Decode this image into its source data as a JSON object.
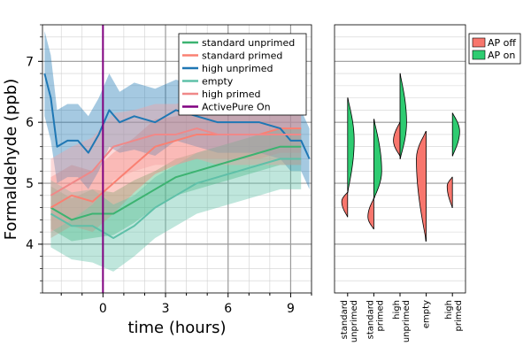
{
  "chart_data": [
    {
      "type": "line",
      "title": "",
      "xlabel": "time (hours)",
      "ylabel": "Formaldehyde (ppb)",
      "xlim": [
        -2.9,
        10.0
      ],
      "ylim": [
        3.2,
        7.6
      ],
      "xticks": [
        0,
        3,
        6,
        9
      ],
      "yticks": [
        4,
        5,
        6,
        7
      ],
      "grid": true,
      "legend_position": "top-right",
      "vline": {
        "x": 0,
        "label": "ActivePure On",
        "color": "#800080"
      },
      "series": [
        {
          "name": "standard unprimed",
          "color": "#3CB371",
          "band_color": "#3CB371",
          "x": [
            -2.5,
            -1.5,
            -0.5,
            0.5,
            1.5,
            2.5,
            3.5,
            4.5,
            5.5,
            6.5,
            7.5,
            8.5,
            9.5
          ],
          "y": [
            4.6,
            4.4,
            4.5,
            4.5,
            4.7,
            4.9,
            5.1,
            5.2,
            5.3,
            5.4,
            5.5,
            5.6,
            5.6
          ],
          "band": [
            0.35,
            0.35,
            0.4,
            0.35,
            0.35,
            0.3,
            0.3,
            0.3,
            0.3,
            0.3,
            0.3,
            0.3,
            0.3
          ]
        },
        {
          "name": "standard primed",
          "color": "#FA8072",
          "band_color": "#FA8072",
          "x": [
            -2.5,
            -1.5,
            -0.5,
            0.5,
            1.5,
            2.5,
            3.5,
            4.5,
            5.5,
            6.5,
            7.5,
            8.5,
            9.5
          ],
          "y": [
            4.6,
            4.8,
            4.7,
            5.0,
            5.3,
            5.6,
            5.7,
            5.8,
            5.8,
            5.8,
            5.8,
            5.9,
            5.9
          ],
          "band": [
            0.5,
            0.5,
            0.5,
            0.5,
            0.45,
            0.45,
            0.4,
            0.4,
            0.4,
            0.4,
            0.4,
            0.4,
            0.4
          ]
        },
        {
          "name": "high unprimed",
          "color": "#1F77B4",
          "band_color": "#1F77B4",
          "x": [
            -2.8,
            -2.5,
            -2.2,
            -1.7,
            -1.2,
            -0.7,
            -0.2,
            0.3,
            0.8,
            1.5,
            2.5,
            3.5,
            4.5,
            5.5,
            6.5,
            7.5,
            8.5,
            9.0,
            9.5,
            9.9
          ],
          "y": [
            6.8,
            6.4,
            5.6,
            5.7,
            5.7,
            5.5,
            5.8,
            6.2,
            6.0,
            6.1,
            6.0,
            6.2,
            6.1,
            6.0,
            6.0,
            6.0,
            5.9,
            5.7,
            5.7,
            5.4
          ],
          "band": [
            0.7,
            0.7,
            0.6,
            0.6,
            0.6,
            0.6,
            0.6,
            0.6,
            0.5,
            0.55,
            0.55,
            0.5,
            0.5,
            0.5,
            0.5,
            0.5,
            0.5,
            0.5,
            0.5,
            0.5
          ]
        },
        {
          "name": "empty",
          "color": "#5FC0A8",
          "band_color": "#5FC0A8",
          "x": [
            -2.5,
            -1.5,
            -0.5,
            0.5,
            1.5,
            2.5,
            3.5,
            4.5,
            5.5,
            6.5,
            7.5,
            8.5,
            9.5
          ],
          "y": [
            4.5,
            4.3,
            4.3,
            4.1,
            4.3,
            4.6,
            4.8,
            5.0,
            5.1,
            5.2,
            5.3,
            5.4,
            5.4
          ],
          "band": [
            0.55,
            0.55,
            0.6,
            0.55,
            0.5,
            0.5,
            0.5,
            0.5,
            0.5,
            0.5,
            0.5,
            0.5,
            0.5
          ]
        },
        {
          "name": "high primed",
          "color": "#F08888",
          "band_color": "#F4A0A0",
          "x": [
            -2.5,
            -1.5,
            -0.5,
            0.5,
            1.5,
            2.5,
            3.5,
            4.5,
            5.5,
            6.5,
            7.5,
            8.5,
            9.5
          ],
          "y": [
            4.8,
            5.0,
            5.2,
            5.6,
            5.7,
            5.8,
            5.8,
            5.9,
            5.8,
            5.8,
            5.8,
            5.8,
            5.8
          ],
          "band": [
            0.6,
            0.6,
            0.55,
            0.55,
            0.5,
            0.5,
            0.5,
            0.5,
            0.5,
            0.5,
            0.5,
            0.5,
            0.5
          ]
        },
        {
          "name": "ActivePure On",
          "color": "#800080",
          "legend_only": true
        }
      ]
    },
    {
      "type": "violin",
      "categories": [
        "standard\nunprimed",
        "standard\nprimed",
        "high\nunprimed",
        "empty",
        "high\nprimed"
      ],
      "ylim": [
        3.2,
        7.6
      ],
      "grid": true,
      "legend_position": "top-right",
      "legend": [
        {
          "label": "AP off",
          "color": "#F8766D"
        },
        {
          "label": "AP on",
          "color": "#2ECC71"
        }
      ],
      "violins": [
        {
          "off": {
            "min": 4.45,
            "max": 4.85,
            "peak": 4.7,
            "width": 0.45
          },
          "on": {
            "min": 4.85,
            "max": 6.4,
            "peak": 5.7,
            "width": 0.5
          }
        },
        {
          "off": {
            "min": 4.25,
            "max": 4.75,
            "peak": 4.45,
            "width": 0.45
          },
          "on": {
            "min": 4.75,
            "max": 6.05,
            "peak": 5.2,
            "width": 0.6
          }
        },
        {
          "off": {
            "min": 5.45,
            "max": 6.0,
            "peak": 5.7,
            "width": 0.5
          },
          "on": {
            "min": 5.4,
            "max": 6.8,
            "peak": 6.0,
            "width": 0.5
          }
        },
        {
          "off": {
            "min": 4.05,
            "max": 5.85,
            "peak": 5.4,
            "width": 0.75
          },
          "on": null
        },
        {
          "off": {
            "min": 4.6,
            "max": 5.1,
            "peak": 4.95,
            "width": 0.4
          },
          "on": {
            "min": 5.45,
            "max": 6.15,
            "peak": 5.85,
            "width": 0.55
          }
        }
      ]
    }
  ]
}
